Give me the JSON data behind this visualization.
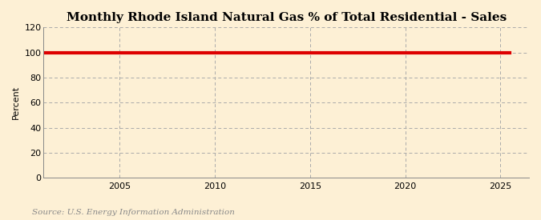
{
  "title": "Monthly Rhode Island Natural Gas % of Total Residential - Sales",
  "ylabel": "Percent",
  "source_text": "Source: U.S. Energy Information Administration",
  "background_color": "#fdf0d5",
  "plot_bg_color": "#fdf0d5",
  "line_color": "#dd0000",
  "line_width": 3.0,
  "x_start": 2001,
  "x_end": 2025.5,
  "y_value": 100,
  "xlim": [
    2001,
    2026.5
  ],
  "ylim": [
    0,
    120
  ],
  "yticks": [
    0,
    20,
    40,
    60,
    80,
    100,
    120
  ],
  "xticks": [
    2005,
    2010,
    2015,
    2020,
    2025
  ],
  "grid_color": "#aaaaaa",
  "grid_style": "--",
  "title_fontsize": 11,
  "label_fontsize": 8,
  "tick_fontsize": 8,
  "source_fontsize": 7.5
}
